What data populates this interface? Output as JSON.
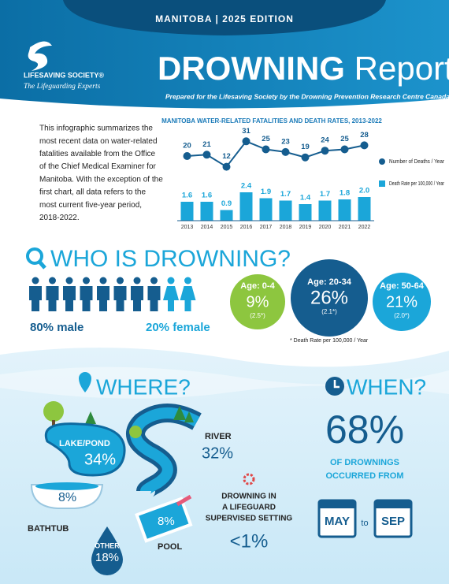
{
  "header": {
    "edition": "MANITOBA  |  2025 EDITION",
    "org": "LIFESAVING SOCIETY®",
    "tagline": "The Lifeguarding Experts",
    "title_bold": "DROWNING",
    "title_light": "Report",
    "subtitle": "Prepared for the Lifesaving Society by the Drowning Prevention Research Centre Canada"
  },
  "intro": {
    "lines": [
      "This infographic summarizes the",
      "most recent data on water-related",
      "fatalities available from the Office",
      "of the Chief Medical Examiner for",
      "Manitoba. With the exception of the",
      "first chart, all data refers to the",
      "most current five-year period,",
      "2018-2022."
    ]
  },
  "chart_data": {
    "type": "bar-line",
    "title": "MANITOBA WATER-RELATED FATALITIES AND DEATH RATES, 2013-2022",
    "categories": [
      "2013",
      "2014",
      "2015",
      "2016",
      "2017",
      "2018",
      "2019",
      "2020",
      "2021",
      "2022"
    ],
    "series": [
      {
        "name": "Number of Deaths / Year",
        "type": "line",
        "color": "#155d8f",
        "values": [
          20,
          21,
          12,
          31,
          25,
          23,
          19,
          24,
          25,
          28
        ]
      },
      {
        "name": "Death Rate per 100,000 / Year",
        "type": "bar",
        "color": "#1ba6d9",
        "values": [
          1.6,
          1.6,
          0.9,
          2.4,
          1.9,
          1.7,
          1.4,
          1.7,
          1.8,
          2.0
        ],
        "value_labels": [
          "1.6",
          "1.6",
          "0.9",
          "2.4",
          "1.9",
          "1.7",
          "1.4",
          "1.7",
          "1.8",
          "2.0"
        ]
      }
    ]
  },
  "who": {
    "title": "WHO IS DROWNING?",
    "male": "80% male",
    "female": "20% female",
    "ages": [
      {
        "label": "Age: 0-4",
        "pct": "9%",
        "rate": "(2.5*)"
      },
      {
        "label": "Age: 20-34",
        "pct": "26%",
        "rate": "(2.1*)"
      },
      {
        "label": "Age: 50-64",
        "pct": "21%",
        "rate": "(2.0*)"
      }
    ],
    "footnote": "* Death Rate per 100,000 / Year"
  },
  "where": {
    "title": "WHERE?",
    "lake": "LAKE/POND",
    "lake_pct": "34%",
    "river": "RIVER",
    "river_pct": "32%",
    "bathtub": "BATHTUB",
    "bathtub_pct": "8%",
    "pool": "POOL",
    "pool_pct": "8%",
    "other": "OTHER",
    "other_pct": "18%",
    "supervised": [
      "DROWNING IN",
      "A LIFEGUARD",
      "SUPERVISED SETTING"
    ],
    "supervised_pct": "<1%"
  },
  "when": {
    "title": "WHEN?",
    "pct": "68%",
    "lines": [
      "OF DROWNINGS",
      "OCCURRED FROM"
    ],
    "from": "MAY",
    "to": "to",
    "until": "SEP"
  }
}
